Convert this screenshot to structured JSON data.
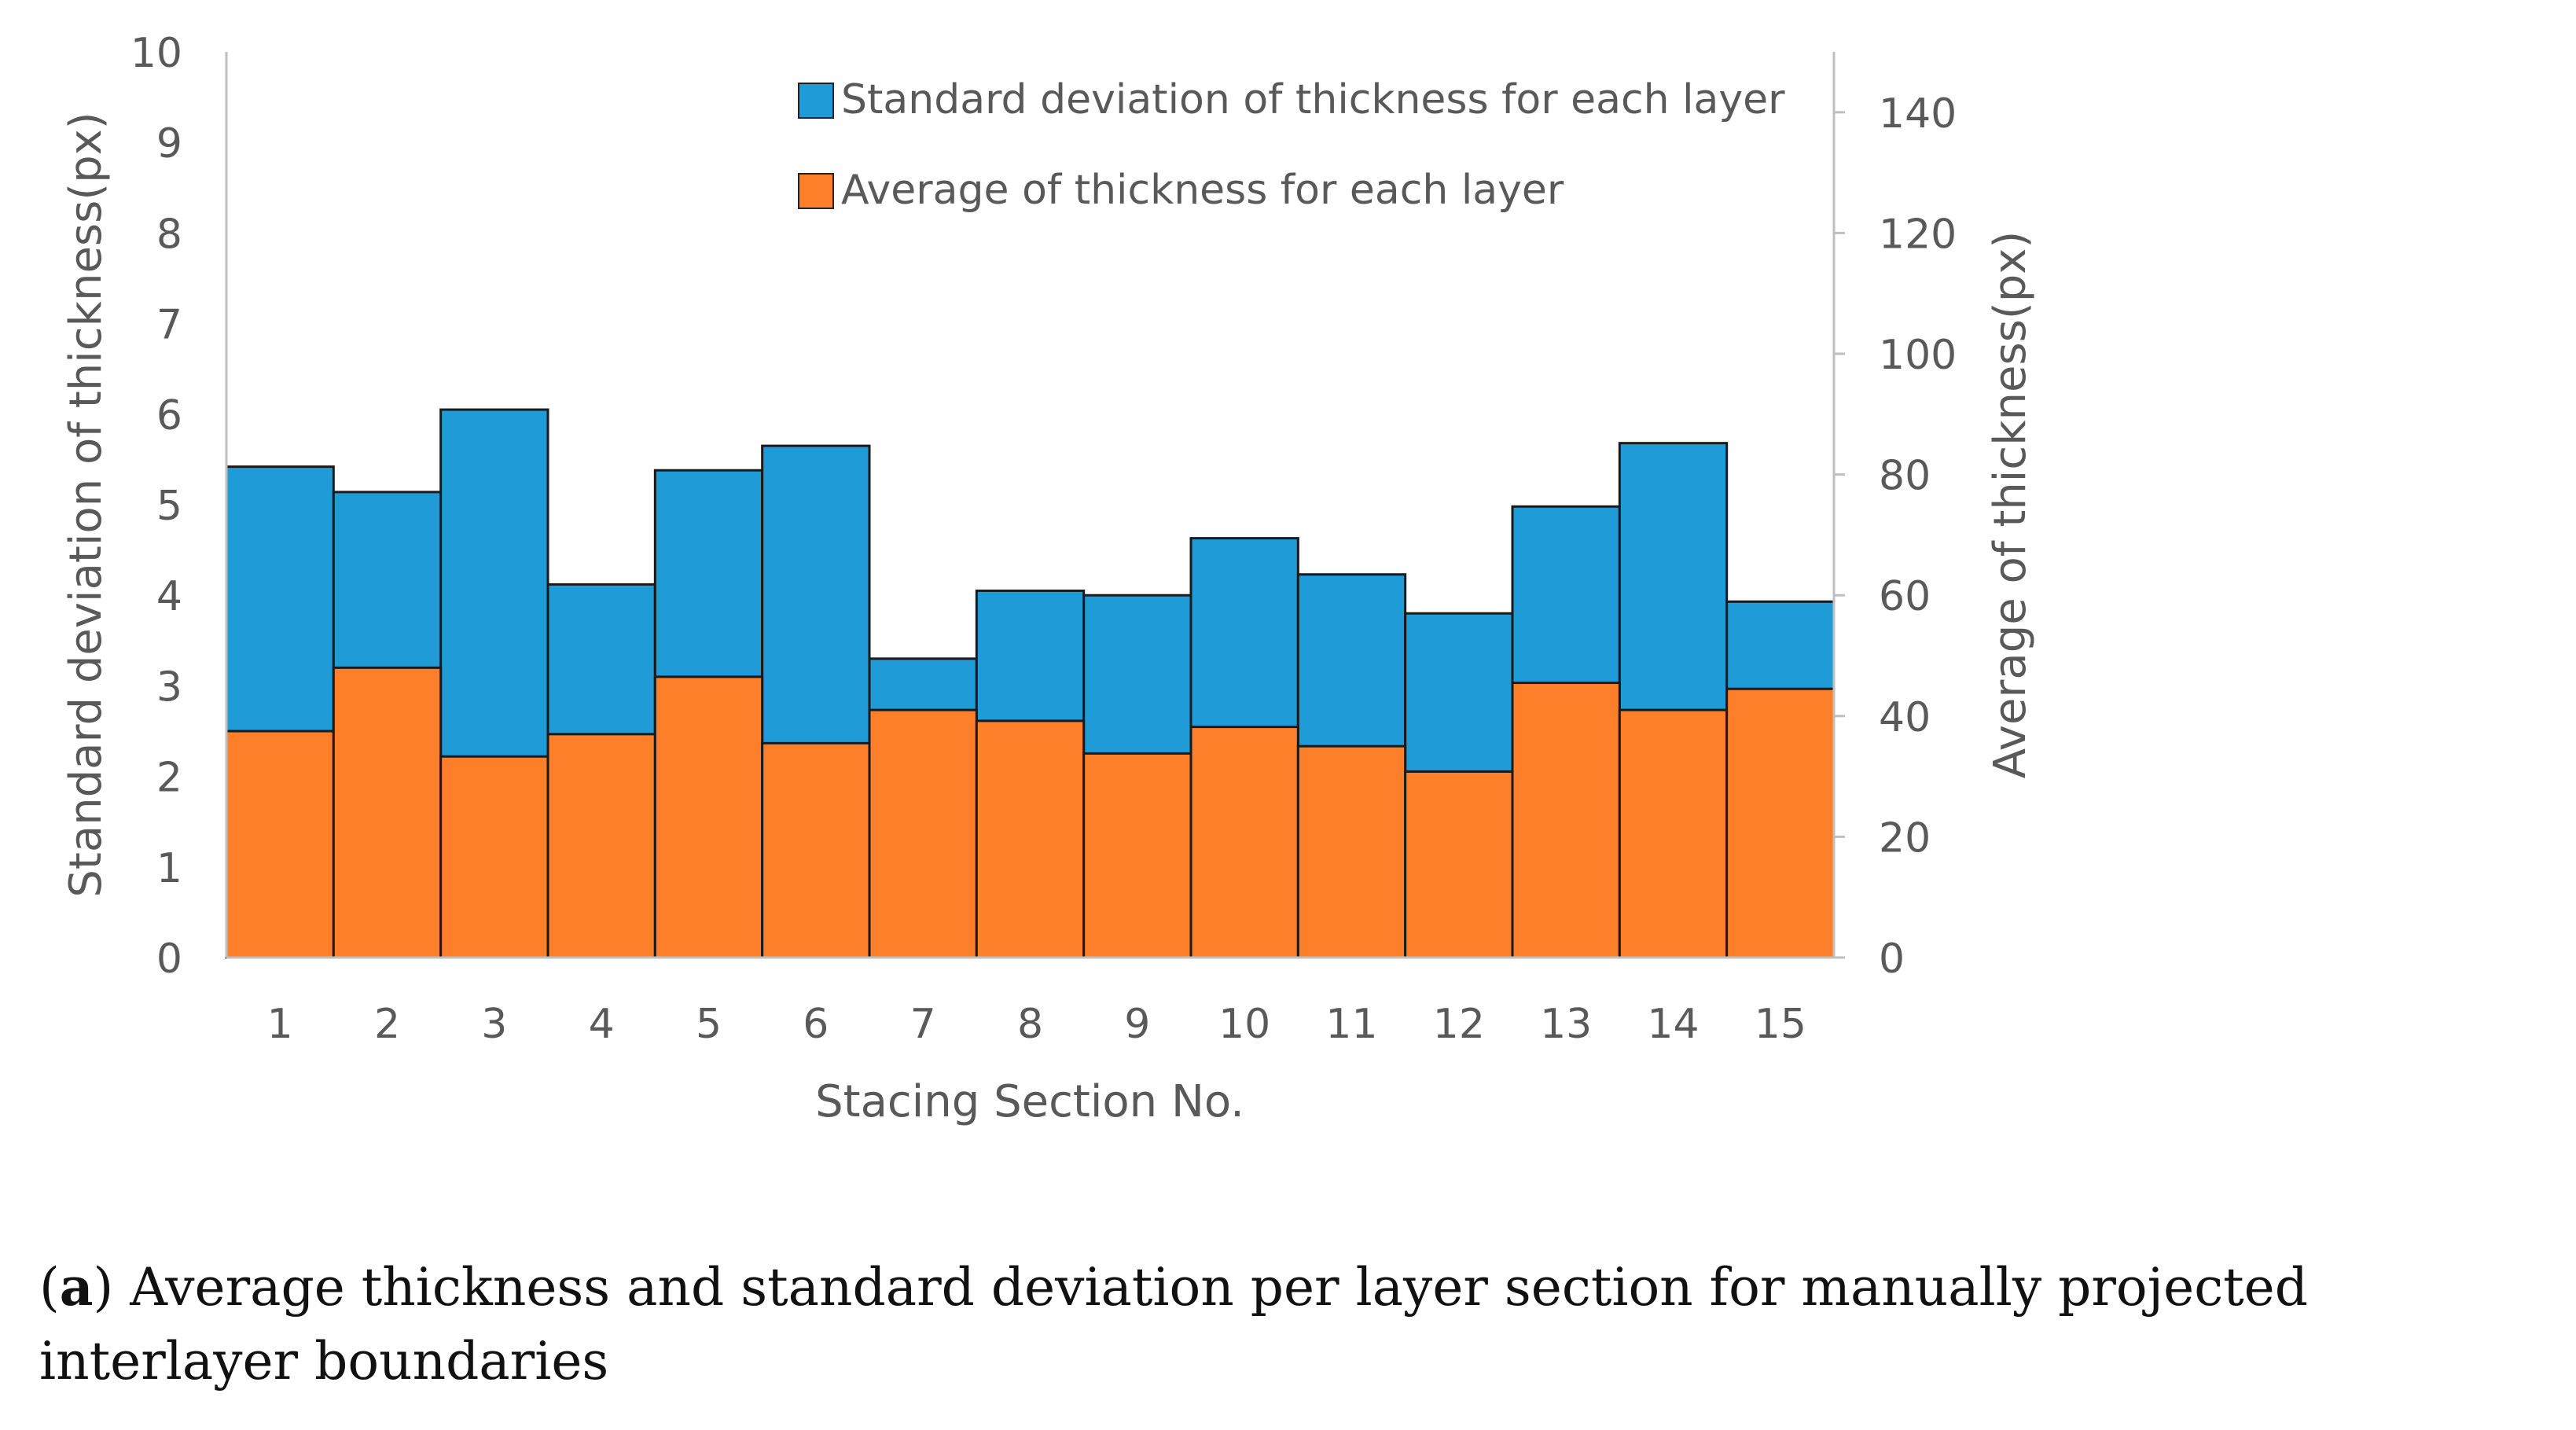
{
  "chart_data": {
    "type": "bar",
    "stacked_overlay": true,
    "categories": [
      "1",
      "2",
      "3",
      "4",
      "5",
      "6",
      "7",
      "8",
      "9",
      "10",
      "11",
      "12",
      "13",
      "14",
      "15"
    ],
    "series": [
      {
        "name": "Standard deviation of thickness for each layer",
        "axis": "left",
        "color": "#1f9bd7",
        "values": [
          5.42,
          5.14,
          6.05,
          4.12,
          5.38,
          5.65,
          3.3,
          4.05,
          4.0,
          4.63,
          4.23,
          3.8,
          4.98,
          5.68,
          3.93
        ]
      },
      {
        "name": "Average of thickness for each layer",
        "axis": "right",
        "color": "#fd7f2a",
        "values": [
          37.5,
          48,
          33.3,
          37,
          46.5,
          35.5,
          41,
          39.2,
          33.8,
          38.2,
          35,
          30.8,
          45.5,
          41,
          44.5
        ]
      }
    ],
    "xlabel": "Stacing Section No.",
    "ylabel_left": "Standard deviation of thickness(px)",
    "ylabel_right": "Average of thickness(px)",
    "ylim_left": [
      0,
      10
    ],
    "ylim_right": [
      0,
      150
    ],
    "yticks_left": [
      "0",
      "1",
      "2",
      "3",
      "4",
      "5",
      "6",
      "7",
      "8",
      "9",
      "10"
    ],
    "yticks_right": [
      "0",
      "20",
      "40",
      "60",
      "80",
      "100",
      "120",
      "140"
    ],
    "legend_position": "top-center"
  },
  "caption": {
    "label": "a",
    "text": ") Average thickness and standard deviation per layer section for manually projected interlayer boundaries"
  }
}
